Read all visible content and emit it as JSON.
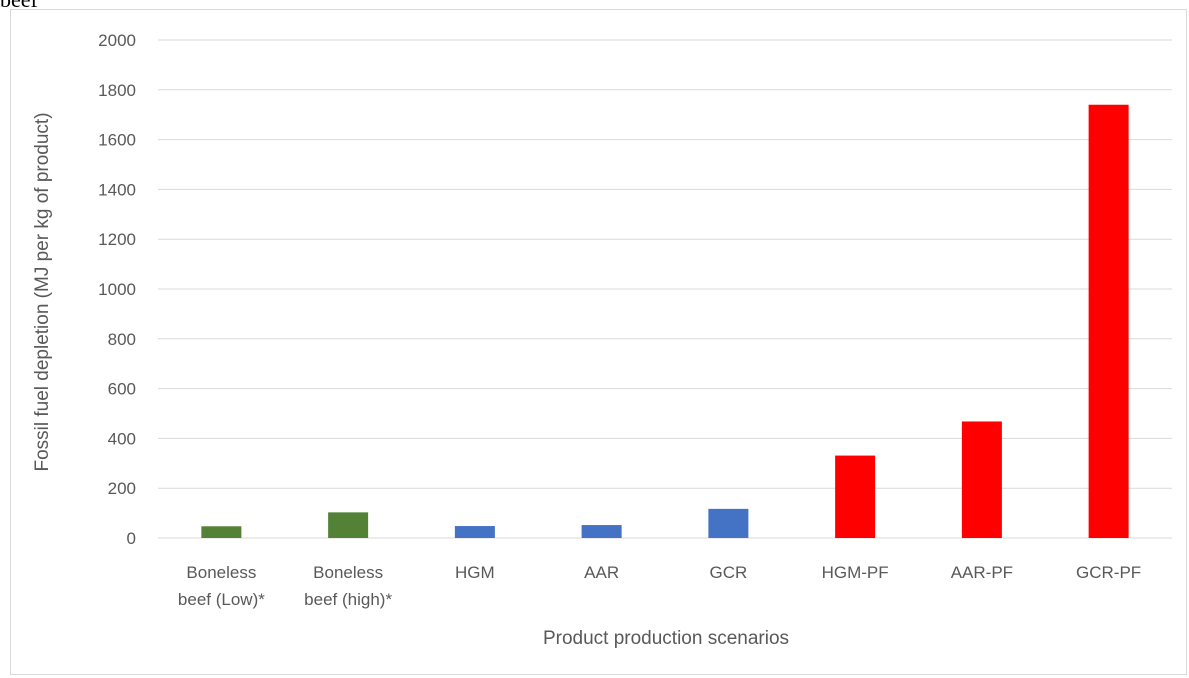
{
  "header_text": "beef",
  "chart_data": {
    "type": "bar",
    "categories": [
      [
        "Boneless",
        "beef (Low)*"
      ],
      [
        "Boneless",
        "beef (high)*"
      ],
      [
        "HGM"
      ],
      [
        "AAR"
      ],
      [
        "GCR"
      ],
      [
        "HGM-PF"
      ],
      [
        "AAR-PF"
      ],
      [
        "GCR-PF"
      ]
    ],
    "values": [
      47,
      103,
      48,
      52,
      117,
      331,
      468,
      1740
    ],
    "bar_colors": [
      "#538135",
      "#538135",
      "#4472c4",
      "#4472c4",
      "#4472c4",
      "#ff0000",
      "#ff0000",
      "#ff0000"
    ],
    "title": "",
    "xlabel": "Product production scenarios",
    "ylabel": "Fossil fuel depletion (MJ per kg of product)",
    "ylim": [
      0,
      2000
    ],
    "yticks": [
      0,
      200,
      400,
      600,
      800,
      1000,
      1200,
      1400,
      1600,
      1800,
      2000
    ],
    "grid": true,
    "grid_color": "#d9d9d9",
    "legend": "none"
  }
}
